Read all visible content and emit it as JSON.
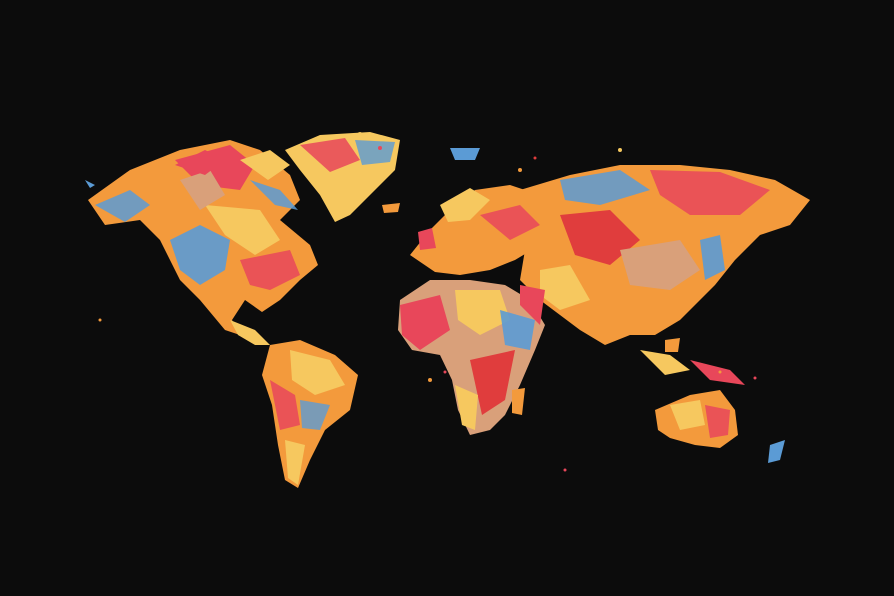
{
  "artwork": {
    "background_color": "#0c0c0c",
    "palette": [
      "#e8475a",
      "#f39a3c",
      "#f6c85f",
      "#5b9bd5",
      "#d9a07a",
      "#e03d3d"
    ],
    "continents": [
      "north-america",
      "greenland",
      "south-america",
      "europe",
      "africa",
      "asia",
      "australia",
      "new-zealand",
      "madagascar",
      "antarctic-free"
    ]
  }
}
